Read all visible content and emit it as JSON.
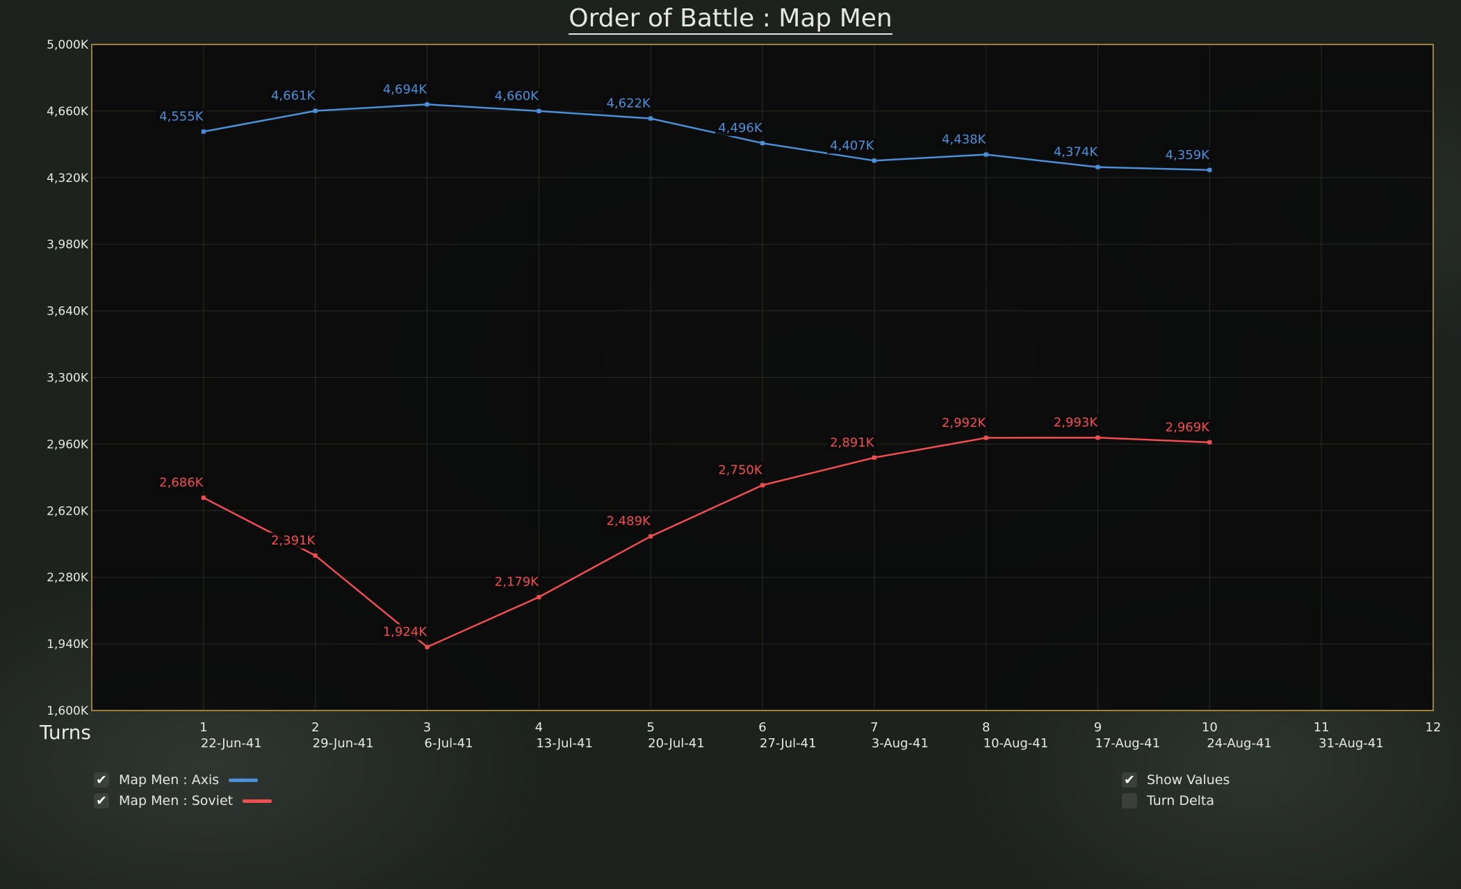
{
  "title": "Order of Battle : Map Men",
  "x_axis_label": "Turns",
  "colors": {
    "axis": "#4b90d9",
    "soviet": "#f04e50",
    "frame": "#c9a43a",
    "plot_bg": "#090909"
  },
  "legend": [
    {
      "label": "Map Men : Axis",
      "checked": true,
      "check": "✔",
      "color": "#4b90d9"
    },
    {
      "label": "Map Men : Soviet",
      "checked": true,
      "check": "✔",
      "color": "#f04e50"
    }
  ],
  "options": [
    {
      "label": "Show Values",
      "checked": true,
      "check": "✔"
    },
    {
      "label": "Turn Delta",
      "checked": false,
      "check": ""
    }
  ],
  "chart_data": {
    "type": "line",
    "title": "Order of Battle : Map Men",
    "xlabel": "Turns",
    "ylabel": "",
    "xlim": [
      0,
      12
    ],
    "ylim": [
      1600,
      5000
    ],
    "y_ticks": [
      "1,600K",
      "1,940K",
      "2,280K",
      "2,620K",
      "2,960K",
      "3,300K",
      "3,640K",
      "3,980K",
      "4,320K",
      "4,660K",
      "5,000K"
    ],
    "x_ticks": [
      {
        "turn": "1",
        "date": "22-Jun-41"
      },
      {
        "turn": "2",
        "date": "29-Jun-41"
      },
      {
        "turn": "3",
        "date": "6-Jul-41"
      },
      {
        "turn": "4",
        "date": "13-Jul-41"
      },
      {
        "turn": "5",
        "date": "20-Jul-41"
      },
      {
        "turn": "6",
        "date": "27-Jul-41"
      },
      {
        "turn": "7",
        "date": "3-Aug-41"
      },
      {
        "turn": "8",
        "date": "10-Aug-41"
      },
      {
        "turn": "9",
        "date": "17-Aug-41"
      },
      {
        "turn": "10",
        "date": "24-Aug-41"
      },
      {
        "turn": "11",
        "date": "31-Aug-41"
      },
      {
        "turn": "12",
        "date": ""
      }
    ],
    "grid": true,
    "legend_position": "bottom-left",
    "series": [
      {
        "name": "Map Men : Axis",
        "color": "#4b90d9",
        "x": [
          1,
          2,
          3,
          4,
          5,
          6,
          7,
          8,
          9,
          10
        ],
        "values": [
          4555,
          4661,
          4694,
          4660,
          4622,
          4496,
          4407,
          4438,
          4374,
          4359
        ],
        "labels": [
          "4,555K",
          "4,661K",
          "4,694K",
          "4,660K",
          "4,622K",
          "4,496K",
          "4,407K",
          "4,438K",
          "4,374K",
          "4,359K"
        ]
      },
      {
        "name": "Map Men : Soviet",
        "color": "#f04e50",
        "x": [
          1,
          2,
          3,
          4,
          5,
          6,
          7,
          8,
          9,
          10
        ],
        "values": [
          2686,
          2391,
          1924,
          2179,
          2489,
          2750,
          2891,
          2992,
          2993,
          2969
        ],
        "labels": [
          "2,686K",
          "2,391K",
          "1,924K",
          "2,179K",
          "2,489K",
          "2,750K",
          "2,891K",
          "2,992K",
          "2,993K",
          "2,969K"
        ]
      }
    ]
  }
}
